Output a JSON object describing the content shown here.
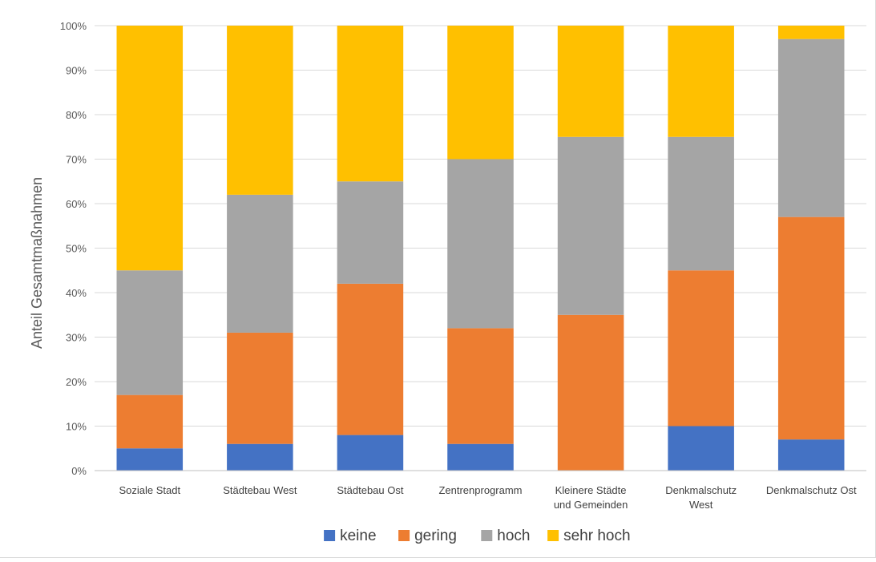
{
  "chart_data": {
    "type": "bar",
    "stacked": true,
    "ylabel": "Anteil  Gesamtmaßnahmen",
    "xlabel": "",
    "ylim": [
      0,
      100
    ],
    "ytick_values": [
      0,
      10,
      20,
      30,
      40,
      50,
      60,
      70,
      80,
      90,
      100
    ],
    "ytick_labels": [
      "0%",
      "10%",
      "20%",
      "30%",
      "40%",
      "50%",
      "60%",
      "70%",
      "80%",
      "90%",
      "100%"
    ],
    "grid": true,
    "legend_position": "bottom",
    "categories": [
      [
        "Soziale Stadt"
      ],
      [
        "Städtebau West"
      ],
      [
        "Städtebau Ost"
      ],
      [
        "Zentrenprogramm"
      ],
      [
        "Kleinere Städte",
        "und Gemeinden"
      ],
      [
        "Denkmalschutz",
        "West"
      ],
      [
        "Denkmalschutz Ost"
      ]
    ],
    "series": [
      {
        "name": "keine",
        "color": "#4472c4",
        "values": [
          5,
          6,
          8,
          6,
          0,
          10,
          7
        ]
      },
      {
        "name": "gering",
        "color": "#ed7d31",
        "values": [
          12,
          25,
          34,
          26,
          35,
          35,
          50
        ]
      },
      {
        "name": "hoch",
        "color": "#a5a5a5",
        "values": [
          28,
          31,
          23,
          38,
          40,
          30,
          40
        ]
      },
      {
        "name": "sehr hoch",
        "color": "#ffc000",
        "values": [
          55,
          38,
          35,
          30,
          25,
          25,
          3
        ]
      }
    ]
  }
}
